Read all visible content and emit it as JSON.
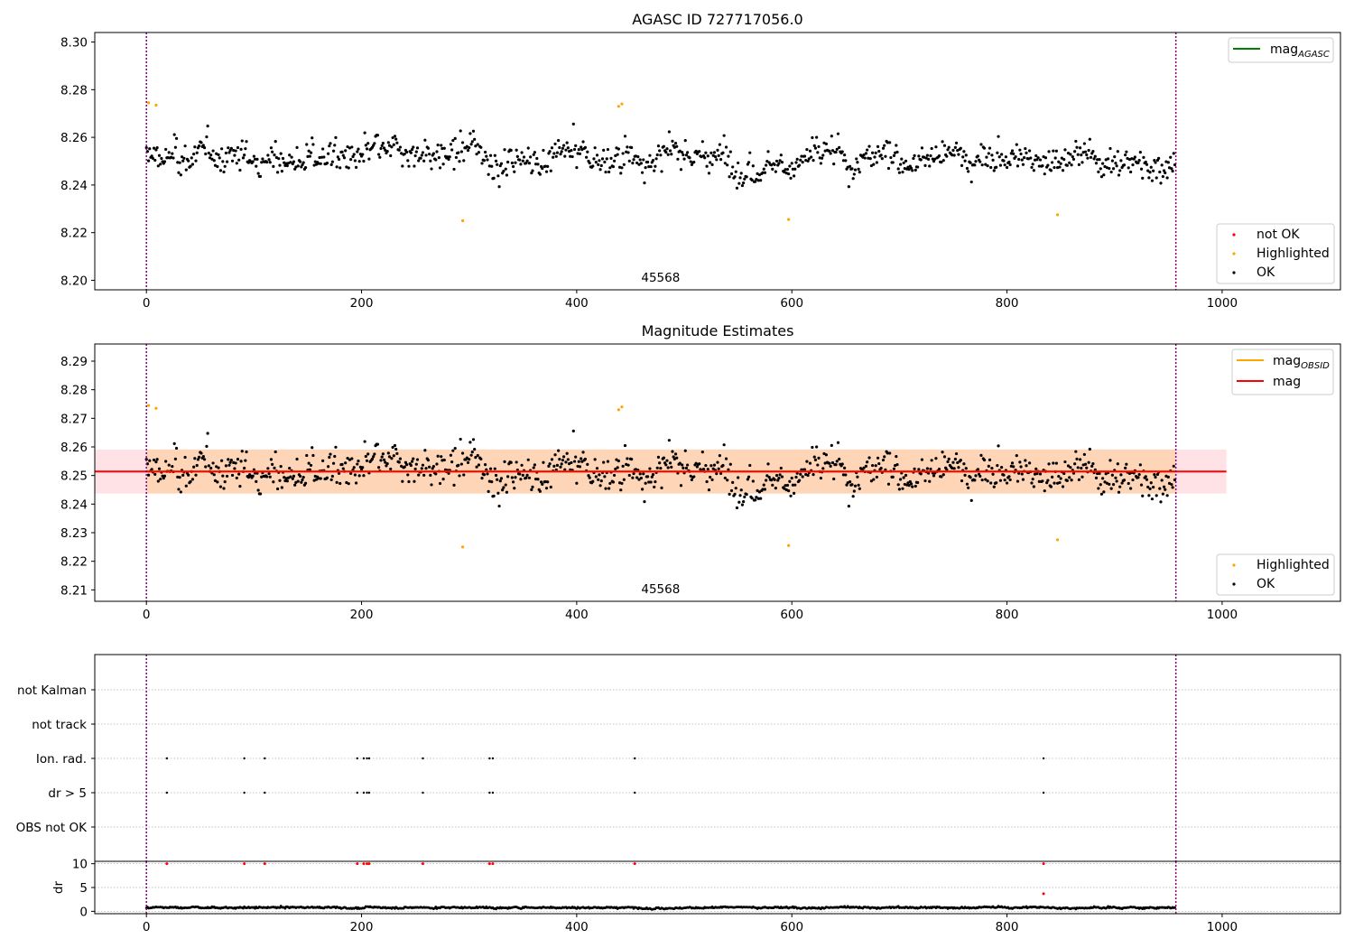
{
  "chart_data": [
    {
      "type": "scatter",
      "title": "AGASC ID 727717056.0",
      "xlim": [
        -48,
        1110
      ],
      "ylim": [
        8.196,
        8.304
      ],
      "xticks": [
        "0",
        "200",
        "400",
        "600",
        "800",
        "1000"
      ],
      "xtick_values": [
        0,
        200,
        400,
        600,
        800,
        1000
      ],
      "yticks": [
        "8.20",
        "8.22",
        "8.24",
        "8.26",
        "8.28",
        "8.30"
      ],
      "ytick_values": [
        8.2,
        8.22,
        8.24,
        8.26,
        8.28,
        8.3
      ],
      "obsid_label": "45568",
      "obsid_label_x": 478,
      "obsid_boundaries": [
        0,
        957
      ],
      "legend_lines": [
        {
          "label": "mag",
          "sub": "AGASC",
          "color": "#008000"
        }
      ],
      "legend_points": [
        {
          "label": "not OK",
          "color": "#ff0000"
        },
        {
          "label": "Highlighted",
          "color": "#ffa500"
        },
        {
          "label": "OK",
          "color": "#000000"
        }
      ],
      "highlighted_points": [
        [
          2,
          8.2745
        ],
        [
          9,
          8.2735
        ],
        [
          294,
          8.225
        ],
        [
          439,
          8.273
        ],
        [
          442,
          8.274
        ],
        [
          597,
          8.2255
        ],
        [
          847,
          8.2275
        ]
      ],
      "ok_series": {
        "n_points": 957,
        "x_start": 0,
        "x_end": 956,
        "center": 8.2514,
        "spread": 0.0075
      }
    },
    {
      "type": "scatter",
      "title": "Magnitude Estimates",
      "xlim": [
        -48,
        1110
      ],
      "ylim": [
        8.206,
        8.296
      ],
      "xticks": [
        "0",
        "200",
        "400",
        "600",
        "800",
        "1000"
      ],
      "xtick_values": [
        0,
        200,
        400,
        600,
        800,
        1000
      ],
      "yticks": [
        "8.21",
        "8.22",
        "8.23",
        "8.24",
        "8.25",
        "8.26",
        "8.27",
        "8.28",
        "8.29"
      ],
      "ytick_values": [
        8.21,
        8.22,
        8.23,
        8.24,
        8.25,
        8.26,
        8.27,
        8.28,
        8.29
      ],
      "obsid_label": "45568",
      "obsid_label_x": 478,
      "obsid_boundaries": [
        0,
        957
      ],
      "mag": 8.2514,
      "mag_band": [
        8.2437,
        8.2591
      ],
      "mag_x_range": [
        -48,
        1004
      ],
      "mag_obsid": 8.2514,
      "mag_obsid_band": [
        8.2437,
        8.2591
      ],
      "mag_obsid_x_range": [
        0,
        957
      ],
      "legend_lines": [
        {
          "label": "mag",
          "sub": "OBSID",
          "color": "#ffa500"
        },
        {
          "label": "mag",
          "sub": "",
          "color": "#ff0000"
        }
      ],
      "legend_points": [
        {
          "label": "Highlighted",
          "color": "#ffa500"
        },
        {
          "label": "OK",
          "color": "#000000"
        }
      ],
      "highlighted_points": [
        [
          2,
          8.2745
        ],
        [
          9,
          8.2735
        ],
        [
          294,
          8.225
        ],
        [
          439,
          8.273
        ],
        [
          442,
          8.274
        ],
        [
          597,
          8.2255
        ],
        [
          847,
          8.2275
        ]
      ],
      "ok_series": {
        "n_points": 957,
        "x_start": 0,
        "x_end": 956,
        "center": 8.2514,
        "spread": 0.0075
      }
    },
    {
      "type": "scatter",
      "title": "",
      "xlim": [
        -48,
        1110
      ],
      "flag_rows": [
        "not Kalman",
        "not track",
        "Ion. rad.",
        "dr > 5",
        "OBS not OK"
      ],
      "flag_points": {
        "Ion. rad.": [
          19,
          91,
          110,
          196,
          202,
          205,
          207,
          257,
          319,
          322,
          454,
          834
        ],
        "dr > 5": [
          19,
          91,
          110,
          196,
          202,
          205,
          207,
          257,
          319,
          322,
          454,
          834
        ]
      },
      "obsid_boundaries": [
        0,
        957
      ]
    },
    {
      "type": "scatter",
      "title": "",
      "ylabel": "dr",
      "xlim": [
        -48,
        1110
      ],
      "ylim": [
        -0.5,
        10.5
      ],
      "xticks": [
        "0",
        "200",
        "400",
        "600",
        "800",
        "1000"
      ],
      "xtick_values": [
        0,
        200,
        400,
        600,
        800,
        1000
      ],
      "yticks": [
        "0",
        "5",
        "10"
      ],
      "ytick_values": [
        0,
        5,
        10
      ],
      "red_points": [
        [
          19,
          10
        ],
        [
          91,
          10
        ],
        [
          110,
          10
        ],
        [
          196,
          10
        ],
        [
          202,
          10
        ],
        [
          205,
          10
        ],
        [
          207,
          10
        ],
        [
          257,
          10
        ],
        [
          319,
          10
        ],
        [
          322,
          10
        ],
        [
          454,
          10
        ],
        [
          834,
          10
        ],
        [
          834,
          3.7
        ]
      ],
      "dr_series": {
        "n_points": 957,
        "x_start": 0,
        "x_end": 956,
        "mean": 0.8
      },
      "obsid_boundaries": [
        0,
        957
      ]
    }
  ]
}
